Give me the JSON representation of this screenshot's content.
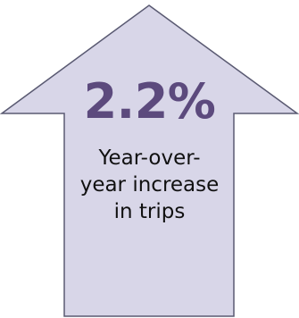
{
  "colors": {
    "arrow_fill": "#d8d6e8",
    "arrow_stroke": "#5a5a72",
    "value_color": "#5c4a7d",
    "caption_color": "#111111"
  },
  "stat": {
    "value": "2.2%",
    "caption_lines": [
      "Year-over-",
      "year increase",
      "in trips"
    ]
  }
}
